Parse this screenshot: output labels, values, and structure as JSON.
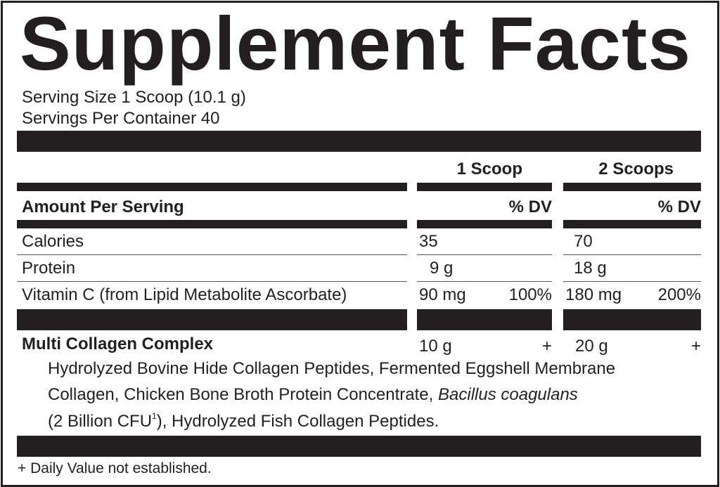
{
  "title": "Supplement Facts",
  "serving_size": "Serving Size 1 Scoop (10.1 g)",
  "servings_per_container": "Servings Per Container 40",
  "columns": [
    "1 Scoop",
    "2 Scoops"
  ],
  "amount_per_serving": "Amount Per Serving",
  "dv_label": "% DV",
  "rows": [
    {
      "name": "Calories",
      "c1_amount": "35",
      "c1_dv": "",
      "c2_amount": "70",
      "c2_dv": ""
    },
    {
      "name": "Protein",
      "c1_amount": "9 g",
      "c1_dv": "",
      "c2_amount": "18 g",
      "c2_dv": ""
    },
    {
      "name": "Vitamin C (from Lipid Metabolite Ascorbate)",
      "c1_amount": "90 mg",
      "c1_dv": "100%",
      "c2_amount": "180 mg",
      "c2_dv": "200%"
    }
  ],
  "blend": {
    "name": "Multi Collagen Complex",
    "c1_amount": "10 g",
    "c1_dv": "+",
    "c2_amount": "20 g",
    "c2_dv": "+",
    "line1": "Hydrolyzed Bovine Hide Collagen Peptides, Fermented Eggshell Membrane",
    "line2a": "Collagen, Chicken Bone Broth Protein Concentrate, ",
    "line2b": "Bacillus coagulans",
    "line3a": "(2 Billion CFU",
    "line3sup": "1",
    "line3b": "), Hydrolyzed Fish Collagen Peptides."
  },
  "footnote": "+ Daily Value not established."
}
